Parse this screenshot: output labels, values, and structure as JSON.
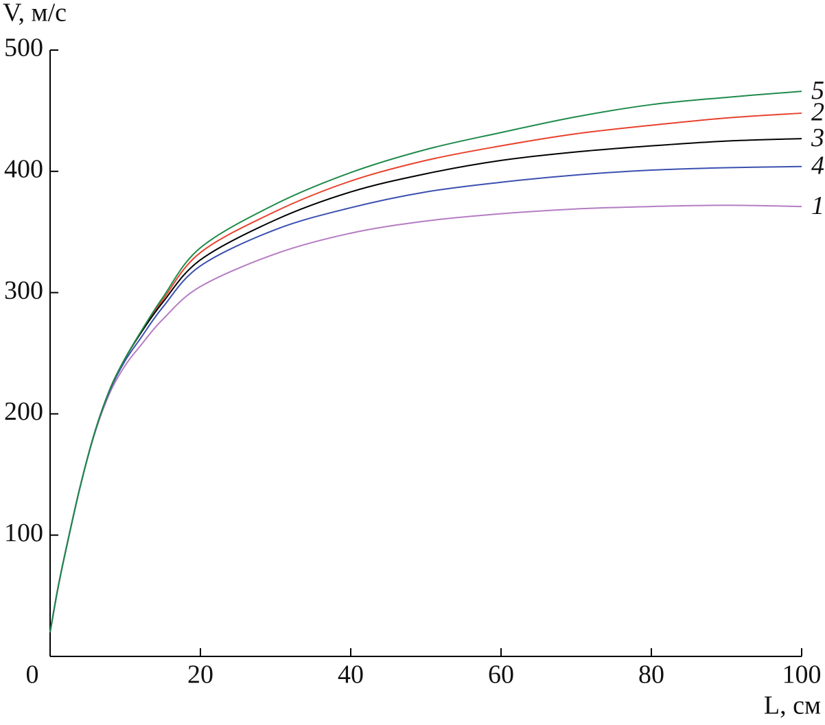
{
  "chart_data": {
    "type": "line",
    "x_label": "L, см",
    "y_label": "V, м/с",
    "x": [
      0,
      1,
      2,
      4,
      6,
      8,
      10,
      12,
      15,
      20,
      30,
      40,
      50,
      60,
      70,
      80,
      90,
      100
    ],
    "series": [
      {
        "name": "1",
        "color": "#b57cc4",
        "values": [
          20,
          55,
          85,
          140,
          185,
          218,
          240,
          256,
          278,
          305,
          332,
          349,
          359,
          365,
          369,
          371,
          372,
          371
        ]
      },
      {
        "name": "2",
        "color": "#e8412c",
        "values": [
          20,
          55,
          85,
          140,
          186,
          221,
          246,
          266,
          294,
          333,
          367,
          392,
          409,
          421,
          431,
          438,
          444,
          448
        ]
      },
      {
        "name": "3",
        "color": "#000000",
        "values": [
          20,
          55,
          85,
          140,
          186,
          221,
          246,
          266,
          292,
          327,
          360,
          383,
          398,
          409,
          416,
          421,
          425,
          427
        ]
      },
      {
        "name": "4",
        "color": "#3a4fb0",
        "values": [
          20,
          55,
          85,
          140,
          186,
          220,
          244,
          262,
          288,
          322,
          352,
          370,
          383,
          391,
          397,
          401,
          403,
          404
        ]
      },
      {
        "name": "5",
        "color": "#1e8a4a",
        "values": [
          20,
          55,
          85,
          140,
          186,
          221,
          246,
          267,
          296,
          337,
          373,
          399,
          418,
          432,
          445,
          455,
          461,
          466
        ]
      }
    ],
    "xlim": [
      0,
      100
    ],
    "xticks": [
      0,
      20,
      40,
      60,
      80,
      100
    ],
    "ylim": [
      0,
      500
    ],
    "yticks": [
      100,
      200,
      300,
      400,
      500
    ],
    "grid": false
  }
}
